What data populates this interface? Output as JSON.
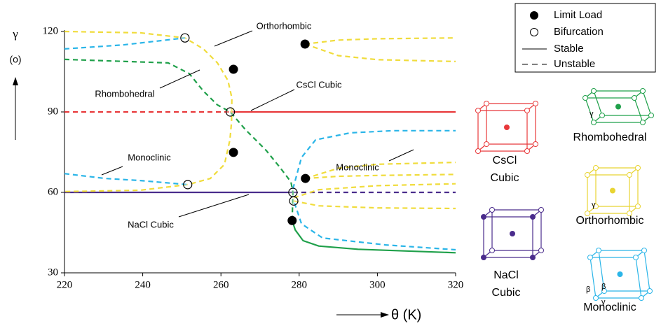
{
  "chart_data": {
    "type": "line",
    "y_label": "γ",
    "y_unit": "(o)",
    "x_label": "θ (K)",
    "xlim": [
      220,
      320
    ],
    "xticks": [
      220,
      240,
      260,
      280,
      300,
      320
    ],
    "ylim": [
      30,
      120
    ],
    "yticks": [
      30,
      60,
      90,
      120
    ],
    "legend": [
      "Limit Load",
      "Bifurcation",
      "Stable",
      "Unstable"
    ],
    "legend_position": "upper right",
    "series": [
      {
        "color": "#e8383a",
        "style": "dashed",
        "x": [
          220,
          262.4
        ],
        "values": [
          90,
          90
        ]
      },
      {
        "color": "#e8383a",
        "style": "solid",
        "x": [
          262.4,
          320
        ],
        "values": [
          90,
          90
        ]
      },
      {
        "color": "#4a2c8c",
        "style": "solid",
        "x": [
          220,
          278.4
        ],
        "values": [
          60,
          60
        ]
      },
      {
        "color": "#4a2c8c",
        "style": "dashed",
        "x": [
          278.4,
          320
        ],
        "values": [
          60,
          60
        ]
      },
      {
        "color": "#1fa04a",
        "style": "dashed",
        "x": [
          220,
          246.5,
          251.9,
          255.5,
          259.1,
          262.4,
          266.2,
          271.6,
          275.2,
          277.9,
          278.4,
          278.2
        ],
        "values": [
          109.6,
          108.3,
          104.3,
          97.8,
          92.6,
          90,
          83.5,
          75.6,
          69.1,
          63.9,
          60,
          49.5
        ]
      },
      {
        "color": "#1fa04a",
        "style": "solid",
        "x": [
          278.2,
          279,
          281,
          285,
          295,
          320
        ],
        "values": [
          49.5,
          46,
          42,
          40,
          38.8,
          37.5
        ]
      },
      {
        "color": "#f0dc3c",
        "style": "dashed",
        "x": [
          220,
          239.4,
          250.8,
          255.5,
          259.1,
          261.8,
          262.8,
          262.7,
          262.3,
          260.9,
          257.3,
          251.5,
          239.4,
          220
        ],
        "values": [
          120,
          119.5,
          117.6,
          113.5,
          108.3,
          101.7,
          95.2,
          86.1,
          79.6,
          70.4,
          65.2,
          62.9,
          60.8,
          60.3
        ]
      },
      {
        "color": "#f0dc3c",
        "style": "dashed",
        "x": [
          281.5,
          290,
          300,
          320
        ],
        "values": [
          115.3,
          116.8,
          117.3,
          117.6
        ]
      },
      {
        "color": "#f0dc3c",
        "style": "dashed",
        "x": [
          281.5,
          290,
          300,
          320
        ],
        "values": [
          115.3,
          111,
          109.5,
          108.8
        ]
      },
      {
        "color": "#f0dc3c",
        "style": "dashed",
        "x": [
          281.6,
          290,
          300,
          320
        ],
        "values": [
          65.2,
          69,
          70.5,
          71.2
        ]
      },
      {
        "color": "#f0dc3c",
        "style": "dashed",
        "x": [
          281.6,
          290,
          300,
          320
        ],
        "values": [
          65.2,
          66,
          66.3,
          66.7
        ]
      },
      {
        "color": "#f0dc3c",
        "style": "dashed",
        "x": [
          278.6,
          285,
          300,
          320
        ],
        "values": [
          58,
          61,
          62.5,
          63.2
        ]
      },
      {
        "color": "#f0dc3c",
        "style": "dashed",
        "x": [
          278.6,
          285,
          300,
          320
        ],
        "values": [
          56.8,
          55,
          54.2,
          54
        ]
      },
      {
        "color": "#2ab5e8",
        "style": "dashed",
        "x": [
          220,
          235,
          250.8
        ],
        "values": [
          113.5,
          115,
          117.6
        ]
      },
      {
        "color": "#2ab5e8",
        "style": "dashed",
        "x": [
          220,
          230.4,
          239.4,
          251.5
        ],
        "values": [
          67,
          65.2,
          64.4,
          62.9
        ]
      },
      {
        "color": "#2ab5e8",
        "style": "dashed",
        "x": [
          278.4,
          280.6,
          284.2,
          293.1,
          303.9,
          320
        ],
        "values": [
          61.3,
          73,
          79.6,
          82.2,
          83,
          83
        ]
      },
      {
        "color": "#2ab5e8",
        "style": "dashed",
        "x": [
          278.8,
          280.6,
          286,
          302.1,
          320
        ],
        "values": [
          56.1,
          48.3,
          43,
          40.4,
          38.6
        ]
      }
    ],
    "limit_loads": {
      "x": [
        263.2,
        263.2,
        281.5,
        281.6,
        278.2
      ],
      "values": [
        105.9,
        74.9,
        115.3,
        65.2,
        49.5
      ]
    },
    "bifurcations": {
      "x": [
        250.8,
        262.4,
        251.5,
        278.4,
        278.6
      ],
      "values": [
        117.6,
        90,
        62.9,
        60,
        56.8
      ]
    },
    "annotations": [
      "Orthorhombic",
      "Rhombohedral",
      "CsCl Cubic",
      "Monoclinic",
      "Monoclinic",
      "NaCl Cubic"
    ],
    "structures": [
      {
        "label": [
          "CsCl",
          "Cubic"
        ],
        "color": "#e8383a",
        "angle_labels": []
      },
      {
        "label": [
          "NaCl",
          "Cubic"
        ],
        "color": "#4a2c8c",
        "angle_labels": []
      },
      {
        "label": [
          "Rhombohedral"
        ],
        "color": "#1fa04a",
        "angle_labels": [
          "γ"
        ]
      },
      {
        "label": [
          "Orthorhombic"
        ],
        "color": "#e8d432",
        "angle_labels": [
          "γ"
        ]
      },
      {
        "label": [
          "Monoclinic"
        ],
        "color": "#2ab5e8",
        "angle_labels": [
          "β",
          "β",
          "γ"
        ]
      }
    ]
  }
}
